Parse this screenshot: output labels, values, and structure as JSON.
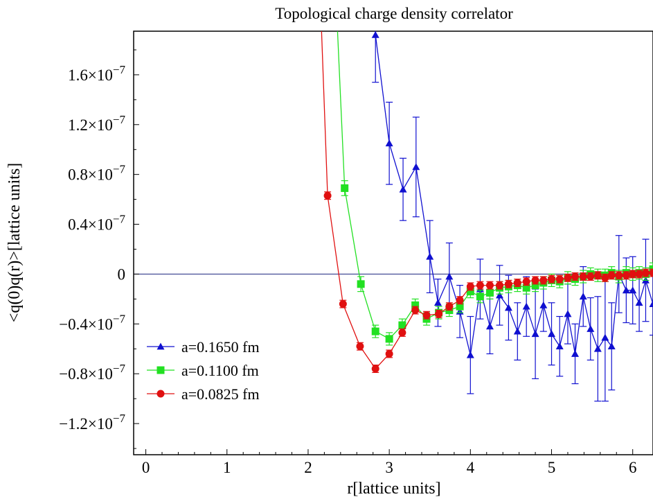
{
  "chart_data": {
    "type": "line",
    "title": "Topological charge density correlator",
    "xlabel": "r[lattice units]",
    "ylabel": "<q(0)q(r)>[lattice units]",
    "xlim": [
      -0.15,
      6.25
    ],
    "ylim": [
      -1.45e-07,
      1.95e-07
    ],
    "x_ticks": [
      0,
      1,
      2,
      3,
      4,
      5,
      6
    ],
    "x_tick_labels": [
      "0",
      "1",
      "2",
      "3",
      "4",
      "5",
      "6"
    ],
    "y_ticks": [
      -1.2e-07,
      -8e-08,
      -4e-08,
      0,
      4e-08,
      8e-08,
      1.2e-07,
      1.6e-07
    ],
    "y_tick_labels": [
      {
        "mantissa": "−1.2×10",
        "exp": "−7"
      },
      {
        "mantissa": "−0.8×10",
        "exp": "−7"
      },
      {
        "mantissa": "−0.4×10",
        "exp": "−7"
      },
      {
        "mantissa": "0",
        "exp": ""
      },
      {
        "mantissa": "0.4×10",
        "exp": "−7"
      },
      {
        "mantissa": "0.8×10",
        "exp": "−7"
      },
      {
        "mantissa": "1.2×10",
        "exp": "−7"
      },
      {
        "mantissa": "1.6×10",
        "exp": "−7"
      }
    ],
    "zero_line": true,
    "grid": false,
    "legend_position": "lower-left",
    "series": [
      {
        "name": "a=0.1650 fm",
        "color": "#1010d0",
        "marker": "triangle",
        "points": [
          [
            2.69,
            4e-07,
            0.0
          ],
          [
            2.83,
            1.92e-07,
            3.8e-08
          ],
          [
            3.0,
            1.05e-07,
            3.3e-08
          ],
          [
            3.17,
            6.8e-08,
            2.5e-08
          ],
          [
            3.33,
            8.6e-08,
            4e-08
          ],
          [
            3.5,
            1.4e-08,
            2.9e-08
          ],
          [
            3.6,
            -2.3e-08,
            1.9e-08
          ],
          [
            3.74,
            -2e-09,
            2.7e-08
          ],
          [
            3.87,
            -3e-08,
            2.1e-08
          ],
          [
            4.0,
            -6.5e-08,
            3.1e-08
          ],
          [
            4.12,
            -1.2e-08,
            2.4e-08
          ],
          [
            4.24,
            -4.2e-08,
            2.2e-08
          ],
          [
            4.36,
            -1.7e-08,
            2.4e-08
          ],
          [
            4.47,
            -2.7e-08,
            2.6e-08
          ],
          [
            4.58,
            -4.6e-08,
            2.3e-08
          ],
          [
            4.69,
            -2.6e-08,
            2.4e-08
          ],
          [
            4.8,
            -4.8e-08,
            3.6e-08
          ],
          [
            4.9,
            -2.5e-08,
            2.1e-08
          ],
          [
            5.0,
            -4.8e-08,
            2.5e-08
          ],
          [
            5.1,
            -5.8e-08,
            2.4e-08
          ],
          [
            5.2,
            -3.2e-08,
            2.4e-08
          ],
          [
            5.29,
            -6.4e-08,
            2.4e-08
          ],
          [
            5.39,
            -1.8e-08,
            2.4e-08
          ],
          [
            5.48,
            -4.4e-08,
            2.5e-08
          ],
          [
            5.57,
            -6e-08,
            4.2e-08
          ],
          [
            5.66,
            -5.1e-08,
            5.1e-08
          ],
          [
            5.74,
            -5.8e-08,
            3.5e-08
          ],
          [
            5.83,
            0.0,
            3.1e-08
          ],
          [
            5.92,
            -1.3e-08,
            2.6e-08
          ],
          [
            6.0,
            -1.3e-08,
            2.7e-08
          ],
          [
            6.08,
            -2.3e-08,
            2.3e-08
          ],
          [
            6.16,
            -5e-09,
            3.3e-08
          ],
          [
            6.25,
            -2.4e-08,
            2.5e-08
          ],
          [
            6.33,
            -3e-08,
            2e-08
          ]
        ]
      },
      {
        "name": "a=0.1100 fm",
        "color": "#22e022",
        "marker": "square",
        "points": [
          [
            2.22,
            4e-07,
            0.0
          ],
          [
            2.45,
            6.9e-08,
            6e-09
          ],
          [
            2.65,
            -8e-09,
            6e-09
          ],
          [
            2.83,
            -4.6e-08,
            5e-09
          ],
          [
            3.0,
            -5.2e-08,
            5e-09
          ],
          [
            3.16,
            -4.1e-08,
            5e-09
          ],
          [
            3.32,
            -2.5e-08,
            5e-09
          ],
          [
            3.46,
            -3.6e-08,
            5e-09
          ],
          [
            3.61,
            -3.1e-08,
            5e-09
          ],
          [
            3.74,
            -2.9e-08,
            5e-09
          ],
          [
            3.87,
            -2.6e-08,
            5e-09
          ],
          [
            4.0,
            -1.4e-08,
            5e-09
          ],
          [
            4.12,
            -1.8e-08,
            5e-09
          ],
          [
            4.24,
            -1.5e-08,
            5e-09
          ],
          [
            4.36,
            -1.1e-08,
            5e-09
          ],
          [
            4.47,
            -1e-08,
            5e-09
          ],
          [
            4.58,
            -9e-09,
            5e-09
          ],
          [
            4.69,
            -1.1e-08,
            5e-09
          ],
          [
            4.8,
            -9e-09,
            5e-09
          ],
          [
            4.9,
            -7e-09,
            5e-09
          ],
          [
            5.0,
            -5e-09,
            5e-09
          ],
          [
            5.1,
            -6e-09,
            5e-09
          ],
          [
            5.2,
            -3e-09,
            5e-09
          ],
          [
            5.29,
            -4e-09,
            5e-09
          ],
          [
            5.39,
            -2e-09,
            5e-09
          ],
          [
            5.48,
            0.0,
            5e-09
          ],
          [
            5.57,
            -1e-09,
            5e-09
          ],
          [
            5.66,
            -1e-09,
            5e-09
          ],
          [
            5.74,
            1e-09,
            5e-09
          ],
          [
            5.83,
            -2e-09,
            5e-09
          ],
          [
            5.92,
            1e-09,
            5e-09
          ],
          [
            6.0,
            0.0,
            5e-09
          ],
          [
            6.08,
            1e-09,
            5e-09
          ],
          [
            6.16,
            0.0,
            5e-09
          ],
          [
            6.25,
            4e-09,
            5e-09
          ],
          [
            6.33,
            3e-09,
            5e-09
          ]
        ]
      },
      {
        "name": "a=0.0825 fm",
        "color": "#e01010",
        "marker": "circle",
        "points": [
          [
            2.05,
            4e-07,
            0.0
          ],
          [
            2.24,
            6.3e-08,
            3e-09
          ],
          [
            2.43,
            -2.4e-08,
            3e-09
          ],
          [
            2.64,
            -5.8e-08,
            3e-09
          ],
          [
            2.83,
            -7.6e-08,
            3e-09
          ],
          [
            3.0,
            -6.4e-08,
            3e-09
          ],
          [
            3.16,
            -4.7e-08,
            3e-09
          ],
          [
            3.32,
            -2.9e-08,
            3e-09
          ],
          [
            3.46,
            -3.3e-08,
            3e-09
          ],
          [
            3.61,
            -3.2e-08,
            3e-09
          ],
          [
            3.74,
            -2.6e-08,
            3e-09
          ],
          [
            3.87,
            -2.1e-08,
            3e-09
          ],
          [
            4.0,
            -1e-08,
            3e-09
          ],
          [
            4.12,
            -9e-09,
            3e-09
          ],
          [
            4.24,
            -9e-09,
            3e-09
          ],
          [
            4.36,
            -9e-09,
            3e-09
          ],
          [
            4.47,
            -8e-09,
            3e-09
          ],
          [
            4.58,
            -7e-09,
            3e-09
          ],
          [
            4.69,
            -6e-09,
            3e-09
          ],
          [
            4.8,
            -5e-09,
            3e-09
          ],
          [
            4.9,
            -5e-09,
            3e-09
          ],
          [
            5.0,
            -4e-09,
            3e-09
          ],
          [
            5.1,
            -4e-09,
            3e-09
          ],
          [
            5.2,
            -3e-09,
            3e-09
          ],
          [
            5.29,
            -2e-09,
            3e-09
          ],
          [
            5.39,
            -2e-09,
            3e-09
          ],
          [
            5.48,
            -2e-09,
            3e-09
          ],
          [
            5.57,
            -1e-09,
            3e-09
          ],
          [
            5.66,
            -3e-09,
            3e-09
          ],
          [
            5.74,
            -1e-09,
            3e-09
          ],
          [
            5.83,
            -1e-09,
            3e-09
          ],
          [
            5.92,
            -1e-09,
            3e-09
          ],
          [
            6.0,
            0.0,
            3e-09
          ],
          [
            6.08,
            0.0,
            3e-09
          ],
          [
            6.16,
            1e-09,
            3e-09
          ],
          [
            6.25,
            1e-09,
            3e-09
          ],
          [
            6.33,
            2e-09,
            3e-09
          ]
        ]
      }
    ]
  }
}
